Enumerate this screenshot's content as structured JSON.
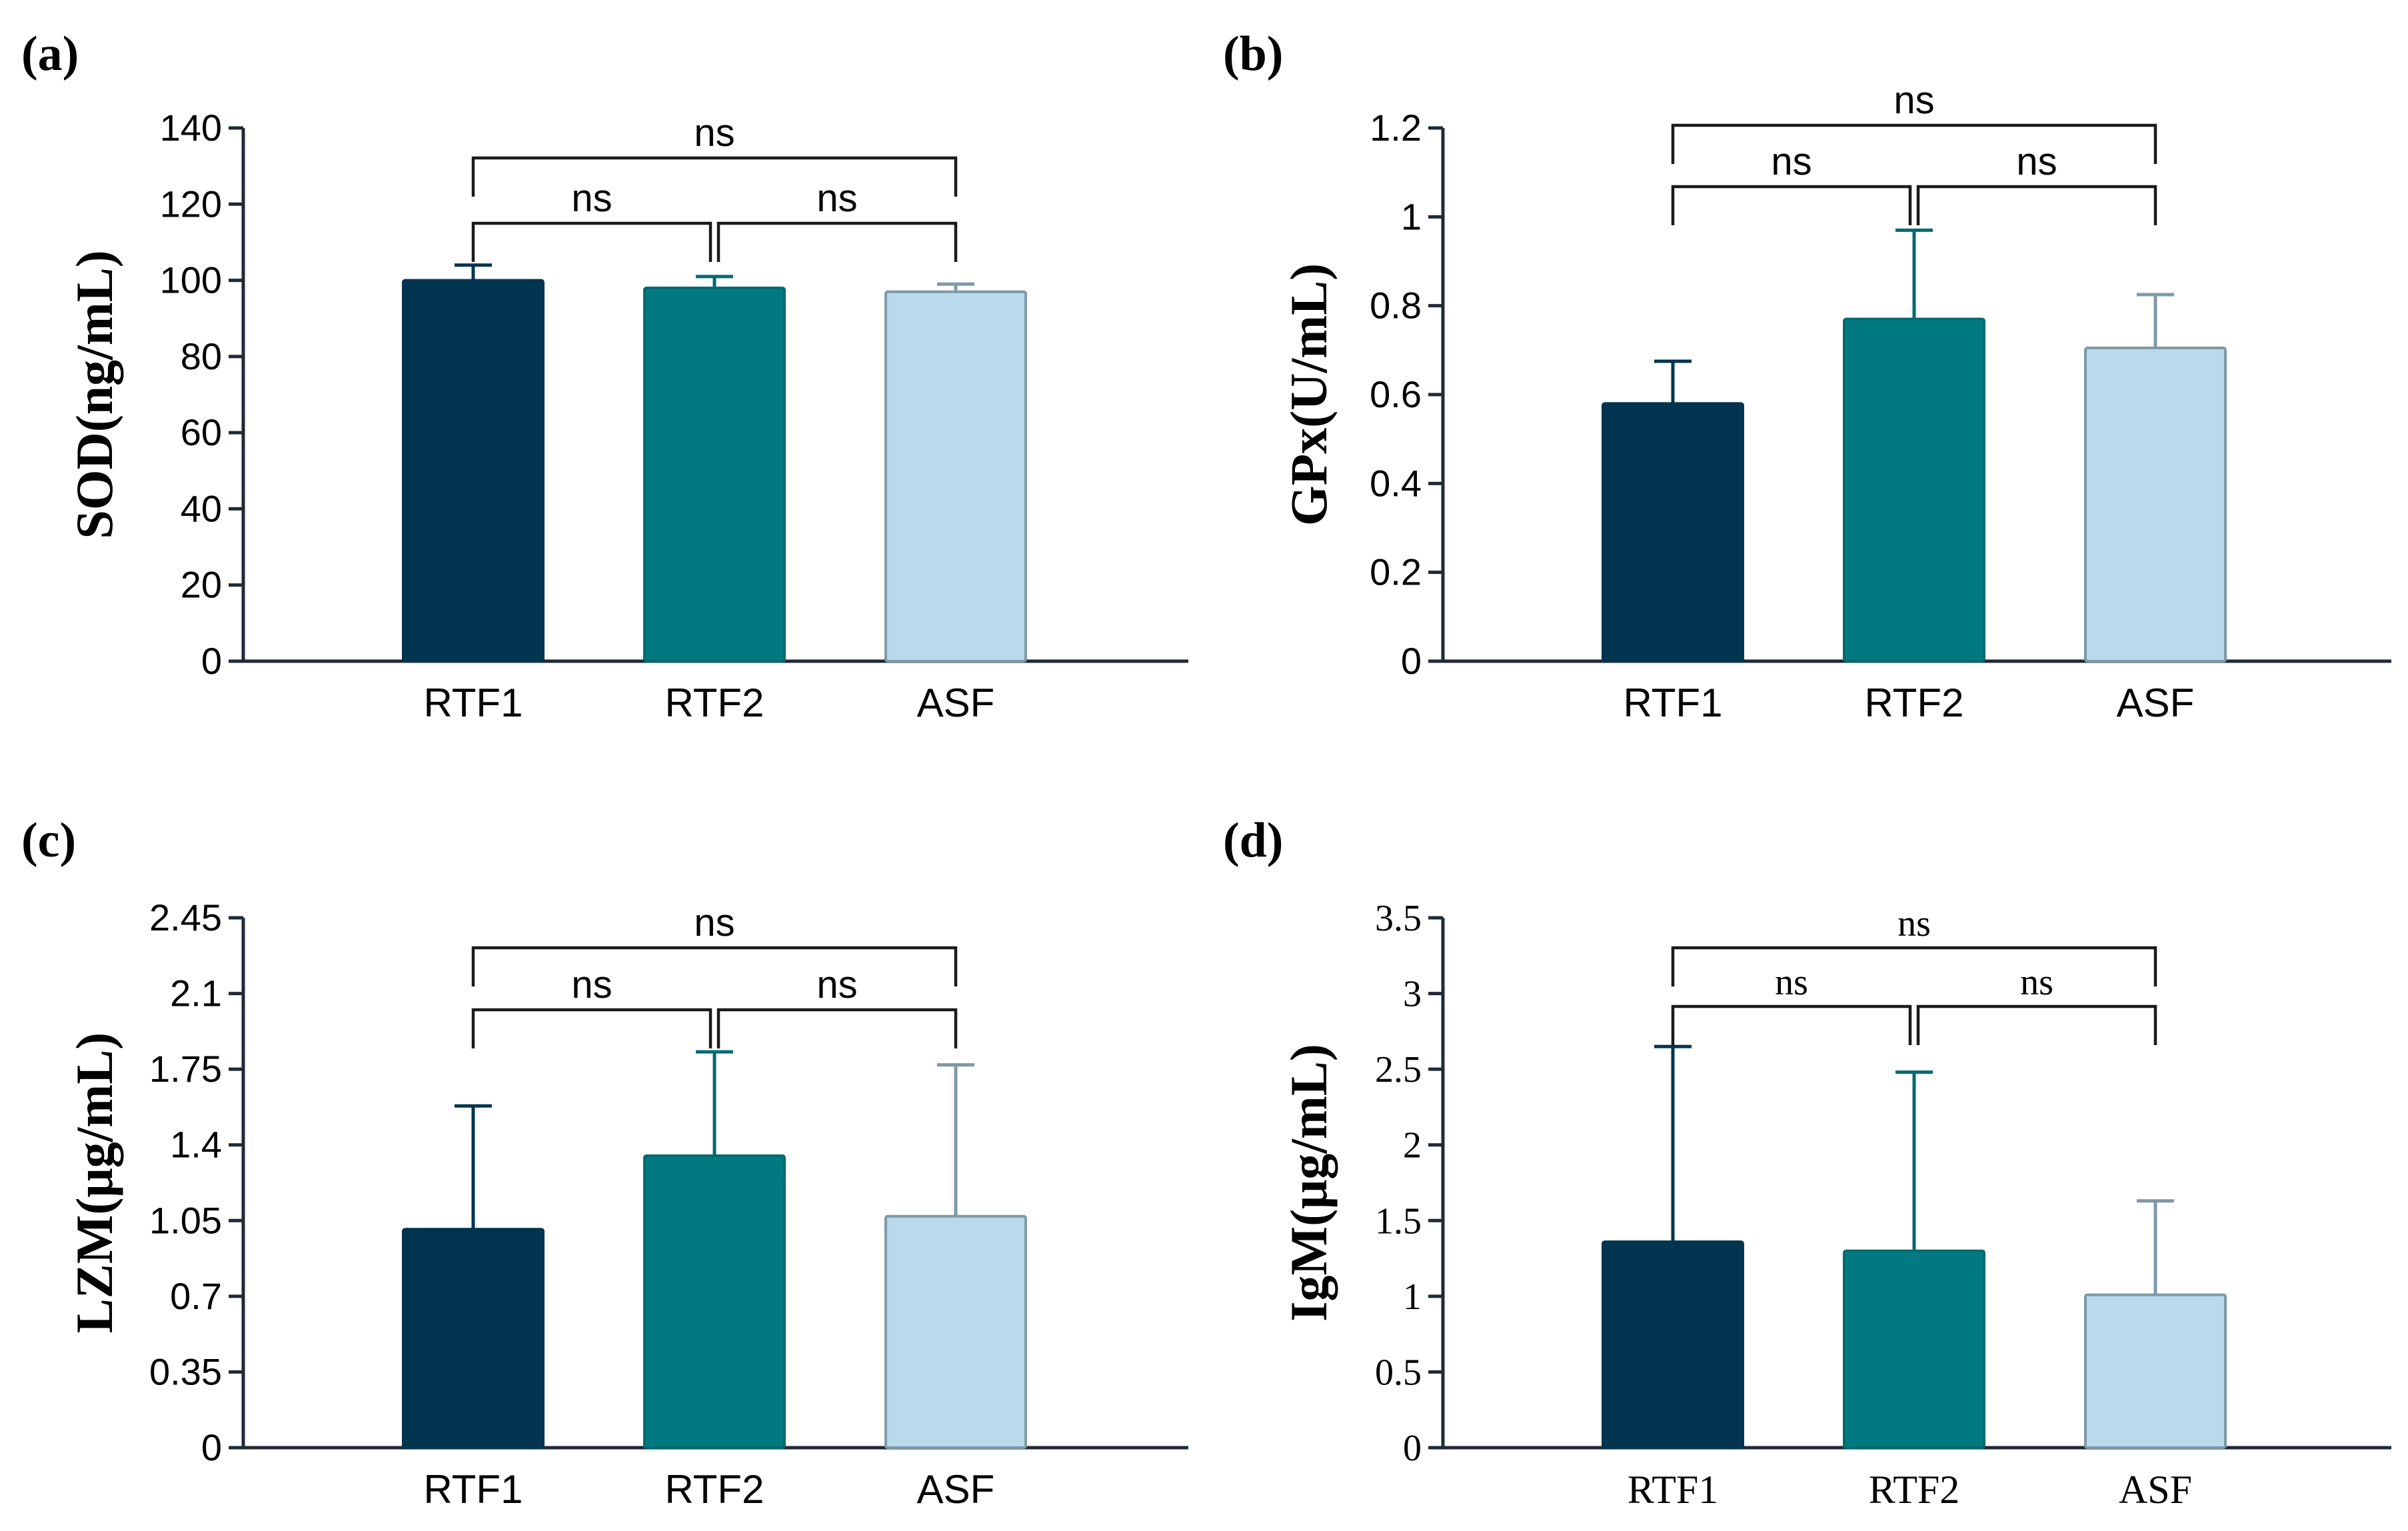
{
  "colors": {
    "RTF1": "#01344f",
    "RTF2": "#007a80",
    "ASF": "#b9d9ec",
    "RTF1_err": "#01344f",
    "RTF2_err": "#036a70",
    "ASF_err": "#7e99a6",
    "axis": "#1f2a36"
  },
  "chart_data": [
    {
      "panel": "(a)",
      "type": "bar",
      "categories": [
        "RTF1",
        "RTF2",
        "ASF"
      ],
      "values": [
        100,
        98,
        97
      ],
      "error_upper": [
        104,
        101,
        99
      ],
      "ylabel": "SOD(ng/mL)",
      "ylim": [
        0,
        140
      ],
      "yticks": [
        "0",
        "20",
        "40",
        "60",
        "80",
        "100",
        "120",
        "140"
      ],
      "comparisons": [
        {
          "from": 0,
          "to": 2,
          "label": "ns"
        },
        {
          "from": 0,
          "to": 1,
          "label": "ns"
        },
        {
          "from": 1,
          "to": 2,
          "label": "ns"
        }
      ]
    },
    {
      "panel": "(b)",
      "type": "bar",
      "categories": [
        "RTF1",
        "RTF2",
        "ASF"
      ],
      "values": [
        0.58,
        0.77,
        0.705
      ],
      "error_upper": [
        0.675,
        0.97,
        0.825
      ],
      "ylabel": "GPx(U/mL)",
      "ylim": [
        0,
        1.2
      ],
      "yticks": [
        "0",
        "0.2",
        "0.4",
        "0.6",
        "0.8",
        "1",
        "1.2"
      ],
      "comparisons": [
        {
          "from": 0,
          "to": 2,
          "label": "ns"
        },
        {
          "from": 0,
          "to": 1,
          "label": "ns"
        },
        {
          "from": 1,
          "to": 2,
          "label": "ns"
        }
      ]
    },
    {
      "panel": "(c)",
      "type": "bar",
      "categories": [
        "RTF1",
        "RTF2",
        "ASF"
      ],
      "values": [
        1.01,
        1.35,
        1.07
      ],
      "error_upper": [
        1.58,
        1.83,
        1.77
      ],
      "ylabel": "LZM(μg/mL)",
      "ylim": [
        0,
        2.45
      ],
      "yticks": [
        "0",
        "0.35",
        "0.7",
        "1.05",
        "1.4",
        "1.75",
        "2.1",
        "2.45"
      ],
      "comparisons": [
        {
          "from": 0,
          "to": 2,
          "label": "ns"
        },
        {
          "from": 0,
          "to": 1,
          "label": "ns"
        },
        {
          "from": 1,
          "to": 2,
          "label": "ns"
        }
      ]
    },
    {
      "panel": "(d)",
      "type": "bar",
      "categories": [
        "RTF1",
        "RTF2",
        "ASF"
      ],
      "values": [
        1.36,
        1.3,
        1.01
      ],
      "error_upper": [
        2.65,
        2.48,
        1.63
      ],
      "ylabel": "IgM(μg/mL)",
      "ylim": [
        0,
        3.5
      ],
      "yticks": [
        "0",
        "0.5",
        "1",
        "1.5",
        "2",
        "2.5",
        "3",
        "3.5"
      ],
      "comparisons": [
        {
          "from": 0,
          "to": 2,
          "label": "ns"
        },
        {
          "from": 0,
          "to": 1,
          "label": "ns"
        },
        {
          "from": 1,
          "to": 2,
          "label": "ns"
        }
      ]
    }
  ]
}
